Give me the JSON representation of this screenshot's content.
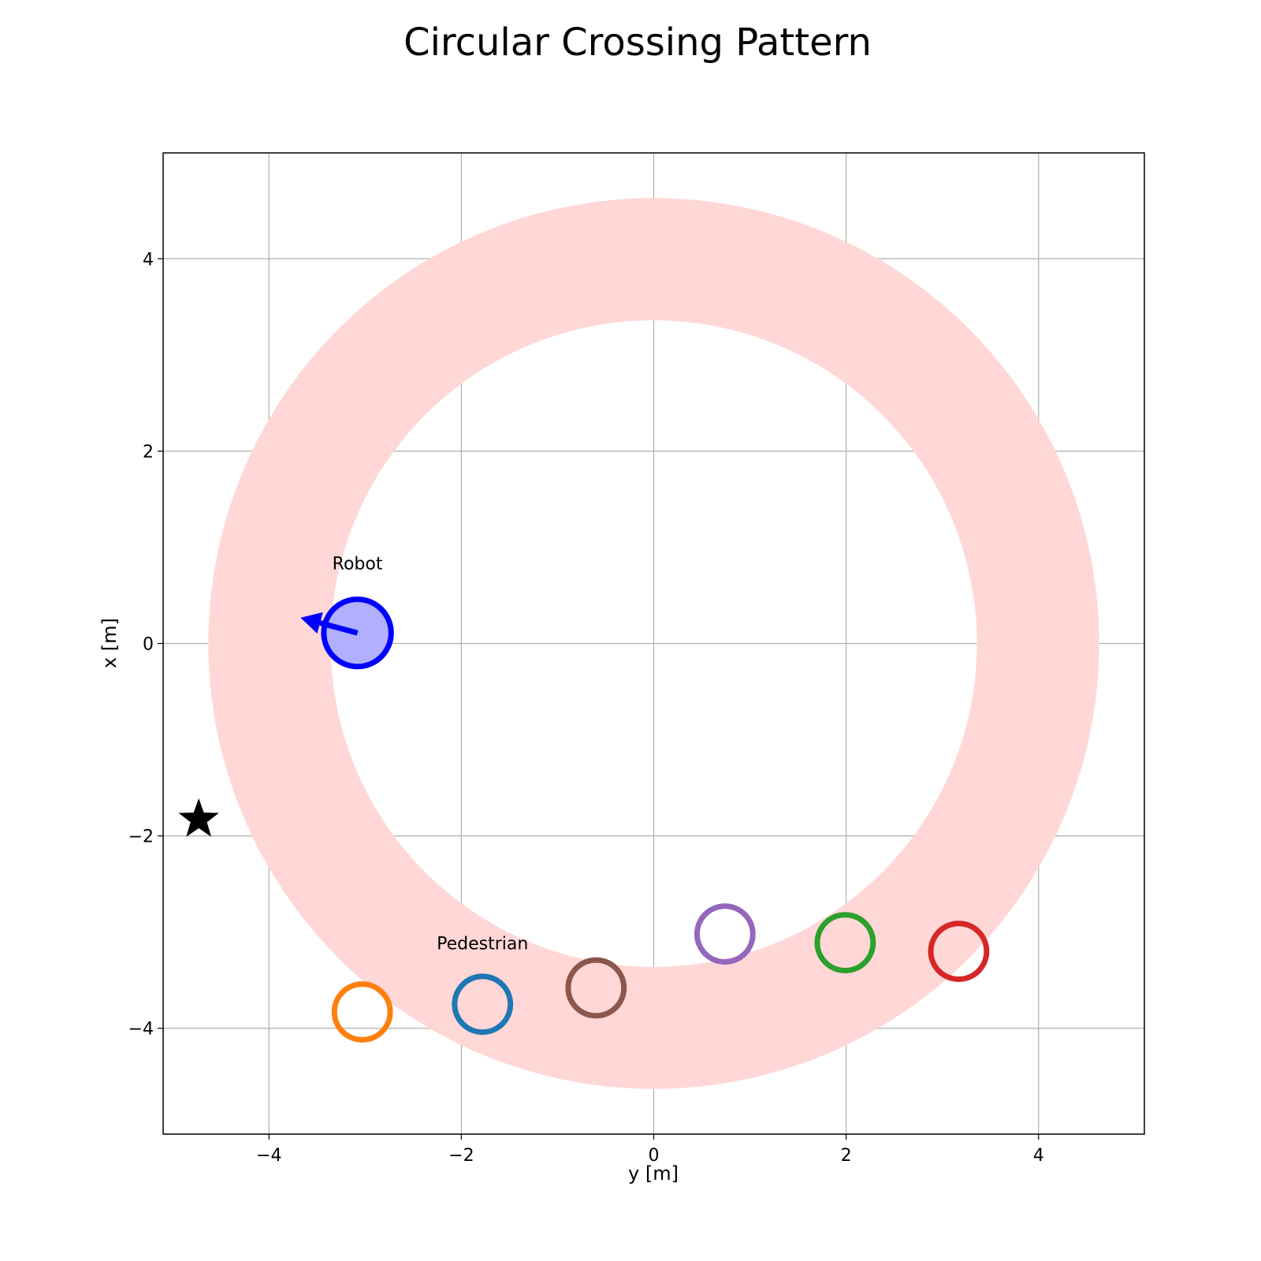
{
  "chart_data": {
    "type": "scatter",
    "title": "Circular Crossing Pattern",
    "xlabel": "y [m]",
    "ylabel": "x [m]",
    "xlim": [
      -5.1,
      5.1
    ],
    "ylim": [
      -5.1,
      5.1
    ],
    "xticks": [
      -4,
      -2,
      0,
      2,
      4
    ],
    "yticks": [
      -4,
      -2,
      0,
      2,
      4
    ],
    "xtick_labels": [
      "−4",
      "−2",
      "0",
      "2",
      "4"
    ],
    "ytick_labels": [
      "−4",
      "−2",
      "0",
      "2",
      "4"
    ],
    "grid": true,
    "ring": {
      "center": [
        0,
        0
      ],
      "inner_radius": 3.36,
      "outer_radius": 4.63,
      "color": "#ffd7d7"
    },
    "robot": {
      "label": "Robot",
      "position": [
        -3.08,
        0.11
      ],
      "radius": 0.35,
      "heading_deg": 165,
      "edge_color": "#0000ff",
      "fill_color": "#b0b0ff"
    },
    "goal": {
      "position": [
        -4.73,
        -1.83
      ],
      "marker": "star",
      "color": "#000000"
    },
    "pedestrian_label": {
      "text": "Pedestrian",
      "position": [
        -1.78,
        -3.18
      ]
    },
    "pedestrians": [
      {
        "position": [
          -3.03,
          -3.83
        ],
        "radius": 0.29,
        "color": "#ff7f0e"
      },
      {
        "position": [
          -1.78,
          -3.75
        ],
        "radius": 0.29,
        "color": "#1f77b4"
      },
      {
        "position": [
          -0.6,
          -3.58
        ],
        "radius": 0.29,
        "color": "#8c564b"
      },
      {
        "position": [
          0.74,
          -3.02
        ],
        "radius": 0.29,
        "color": "#9467bd"
      },
      {
        "position": [
          1.99,
          -3.11
        ],
        "radius": 0.29,
        "color": "#2ca02c"
      },
      {
        "position": [
          3.17,
          -3.2
        ],
        "radius": 0.29,
        "color": "#d62728"
      }
    ]
  }
}
